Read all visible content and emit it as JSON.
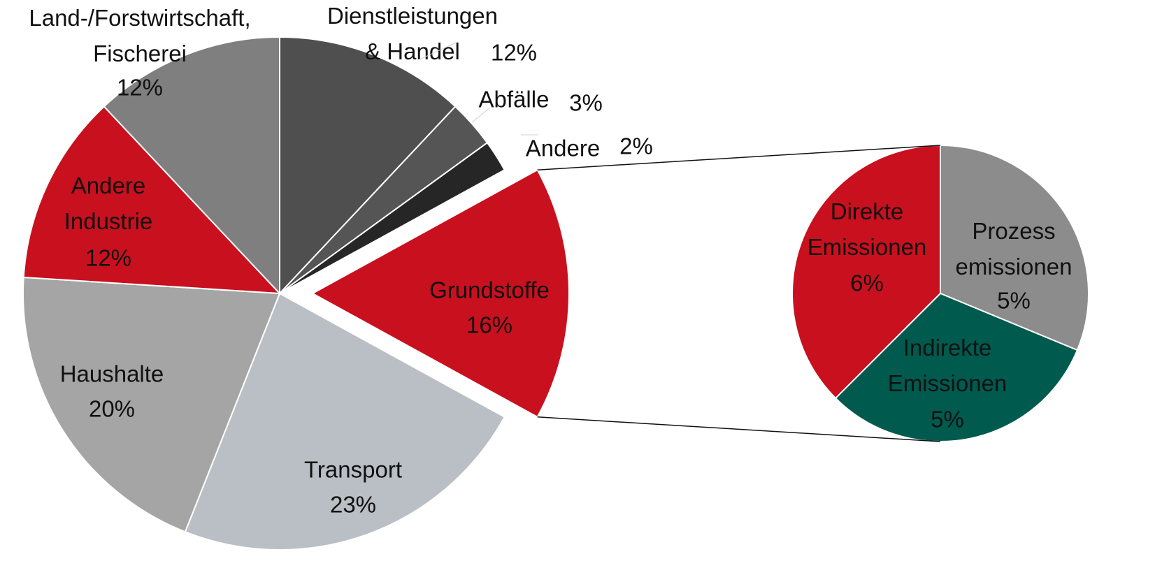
{
  "chart_data": [
    {
      "type": "pie",
      "categories": [
        "Dienstleistungen\n& Handel",
        "Abfälle",
        "Andere",
        "Grundstoffe",
        "Transport",
        "Haushalte",
        "Andere\nIndustrie",
        "Land-/Forstwirtschaft,\nFischerei"
      ],
      "values": [
        12,
        3,
        2,
        16,
        23,
        20,
        12,
        12
      ],
      "value_labels": [
        "12%",
        "3%",
        "2%",
        "16%",
        "23%",
        "20%",
        "12%",
        "12%"
      ],
      "colors": [
        "#4f4f4f",
        "#555555",
        "#262626",
        "#c8101e",
        "#b9bfc4",
        "#a5a5a5",
        "#c8101e",
        "#7f7f7f"
      ]
    },
    {
      "type": "pie",
      "categories": [
        "Prozess\nemissionen",
        "Indirekte\nEmissionen",
        "Direkte\nEmissionen"
      ],
      "values": [
        5,
        5,
        6
      ],
      "value_labels": [
        "5%",
        "5%",
        "6%"
      ],
      "colors": [
        "#8c8c8c",
        "#005a4e",
        "#c8101e"
      ]
    }
  ]
}
